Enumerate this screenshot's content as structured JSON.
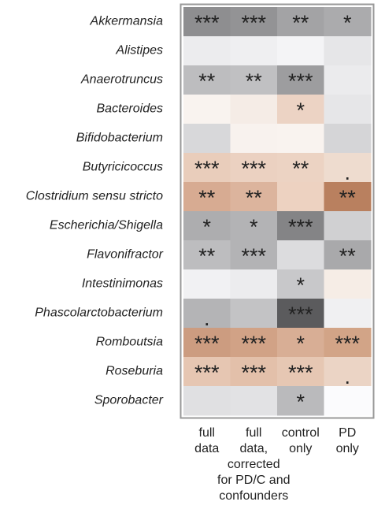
{
  "chart_data": {
    "type": "heatmap",
    "rows": [
      "Akkermansia",
      "Alistipes",
      "Anaerotruncus",
      "Bacteroides",
      "Bifidobacterium",
      "Butyricicoccus",
      "Clostridium sensu stricto",
      "Escherichia/Shigella",
      "Flavonifractor",
      "Intestinimonas",
      "Phascolarctobacterium",
      "Romboutsia",
      "Roseburia",
      "Sporobacter"
    ],
    "columns": [
      [
        "full",
        "data"
      ],
      [
        "full",
        "data,",
        "corrected",
        "for PD/C and",
        "confounders"
      ],
      [
        "control",
        "only"
      ],
      [
        "PD",
        "only"
      ]
    ],
    "cells": [
      [
        "***",
        "***",
        "**",
        "*"
      ],
      [
        null,
        null,
        null,
        null
      ],
      [
        "**",
        "**",
        "***",
        null
      ],
      [
        null,
        null,
        "*",
        null
      ],
      [
        null,
        null,
        null,
        null
      ],
      [
        "***",
        "***",
        "**",
        "."
      ],
      [
        "**",
        "**",
        null,
        "**"
      ],
      [
        "*",
        "*",
        "***",
        null
      ],
      [
        "**",
        "***",
        null,
        "**"
      ],
      [
        null,
        null,
        "*",
        null
      ],
      [
        ".",
        null,
        "***",
        null
      ],
      [
        "***",
        "***",
        "*",
        "***"
      ],
      [
        "***",
        "***",
        "***",
        "."
      ],
      [
        null,
        null,
        "*",
        null
      ]
    ],
    "colors": [
      [
        "#8e8e90",
        "#939395",
        "#a3a3a5",
        "#ababad"
      ],
      [
        "#ececee",
        "#efeff1",
        "#f4f4f6",
        "#e6e6e8"
      ],
      [
        "#bdbdbf",
        "#c0c0c2",
        "#9d9d9f",
        "#ebebed"
      ],
      [
        "#f9f3ef",
        "#f5ece6",
        "#ecd3c4",
        "#e6e6e8"
      ],
      [
        "#d8d8da",
        "#f8f2ee",
        "#f9f3ef",
        "#d5d5d7"
      ],
      [
        "#e9cdbb",
        "#ebd1c1",
        "#ecd3c3",
        "#eedccf"
      ],
      [
        "#d7ab92",
        "#dcb49d",
        "#edd2c1",
        "#b9805f"
      ],
      [
        "#adadaf",
        "#b3b3b5",
        "#848486",
        "#d0d0d2"
      ],
      [
        "#bdbdbf",
        "#b3b3b5",
        "#dcdcde",
        "#a9a9ab"
      ],
      [
        "#f1f1f3",
        "#ececee",
        "#c8c8ca",
        "#f6ede6"
      ],
      [
        "#b4b4b6",
        "#c3c3c5",
        "#5b5b5d",
        "#f0f0f2"
      ],
      [
        "#cc9c80",
        "#d1a286",
        "#d8ae95",
        "#d2a487"
      ],
      [
        "#e6c6b2",
        "#e3c0aa",
        "#e6c7b3",
        "#ebd4c5"
      ],
      [
        "#e0e0e2",
        "#e2e2e4",
        "#bababc",
        "#fbfbfd"
      ]
    ]
  }
}
